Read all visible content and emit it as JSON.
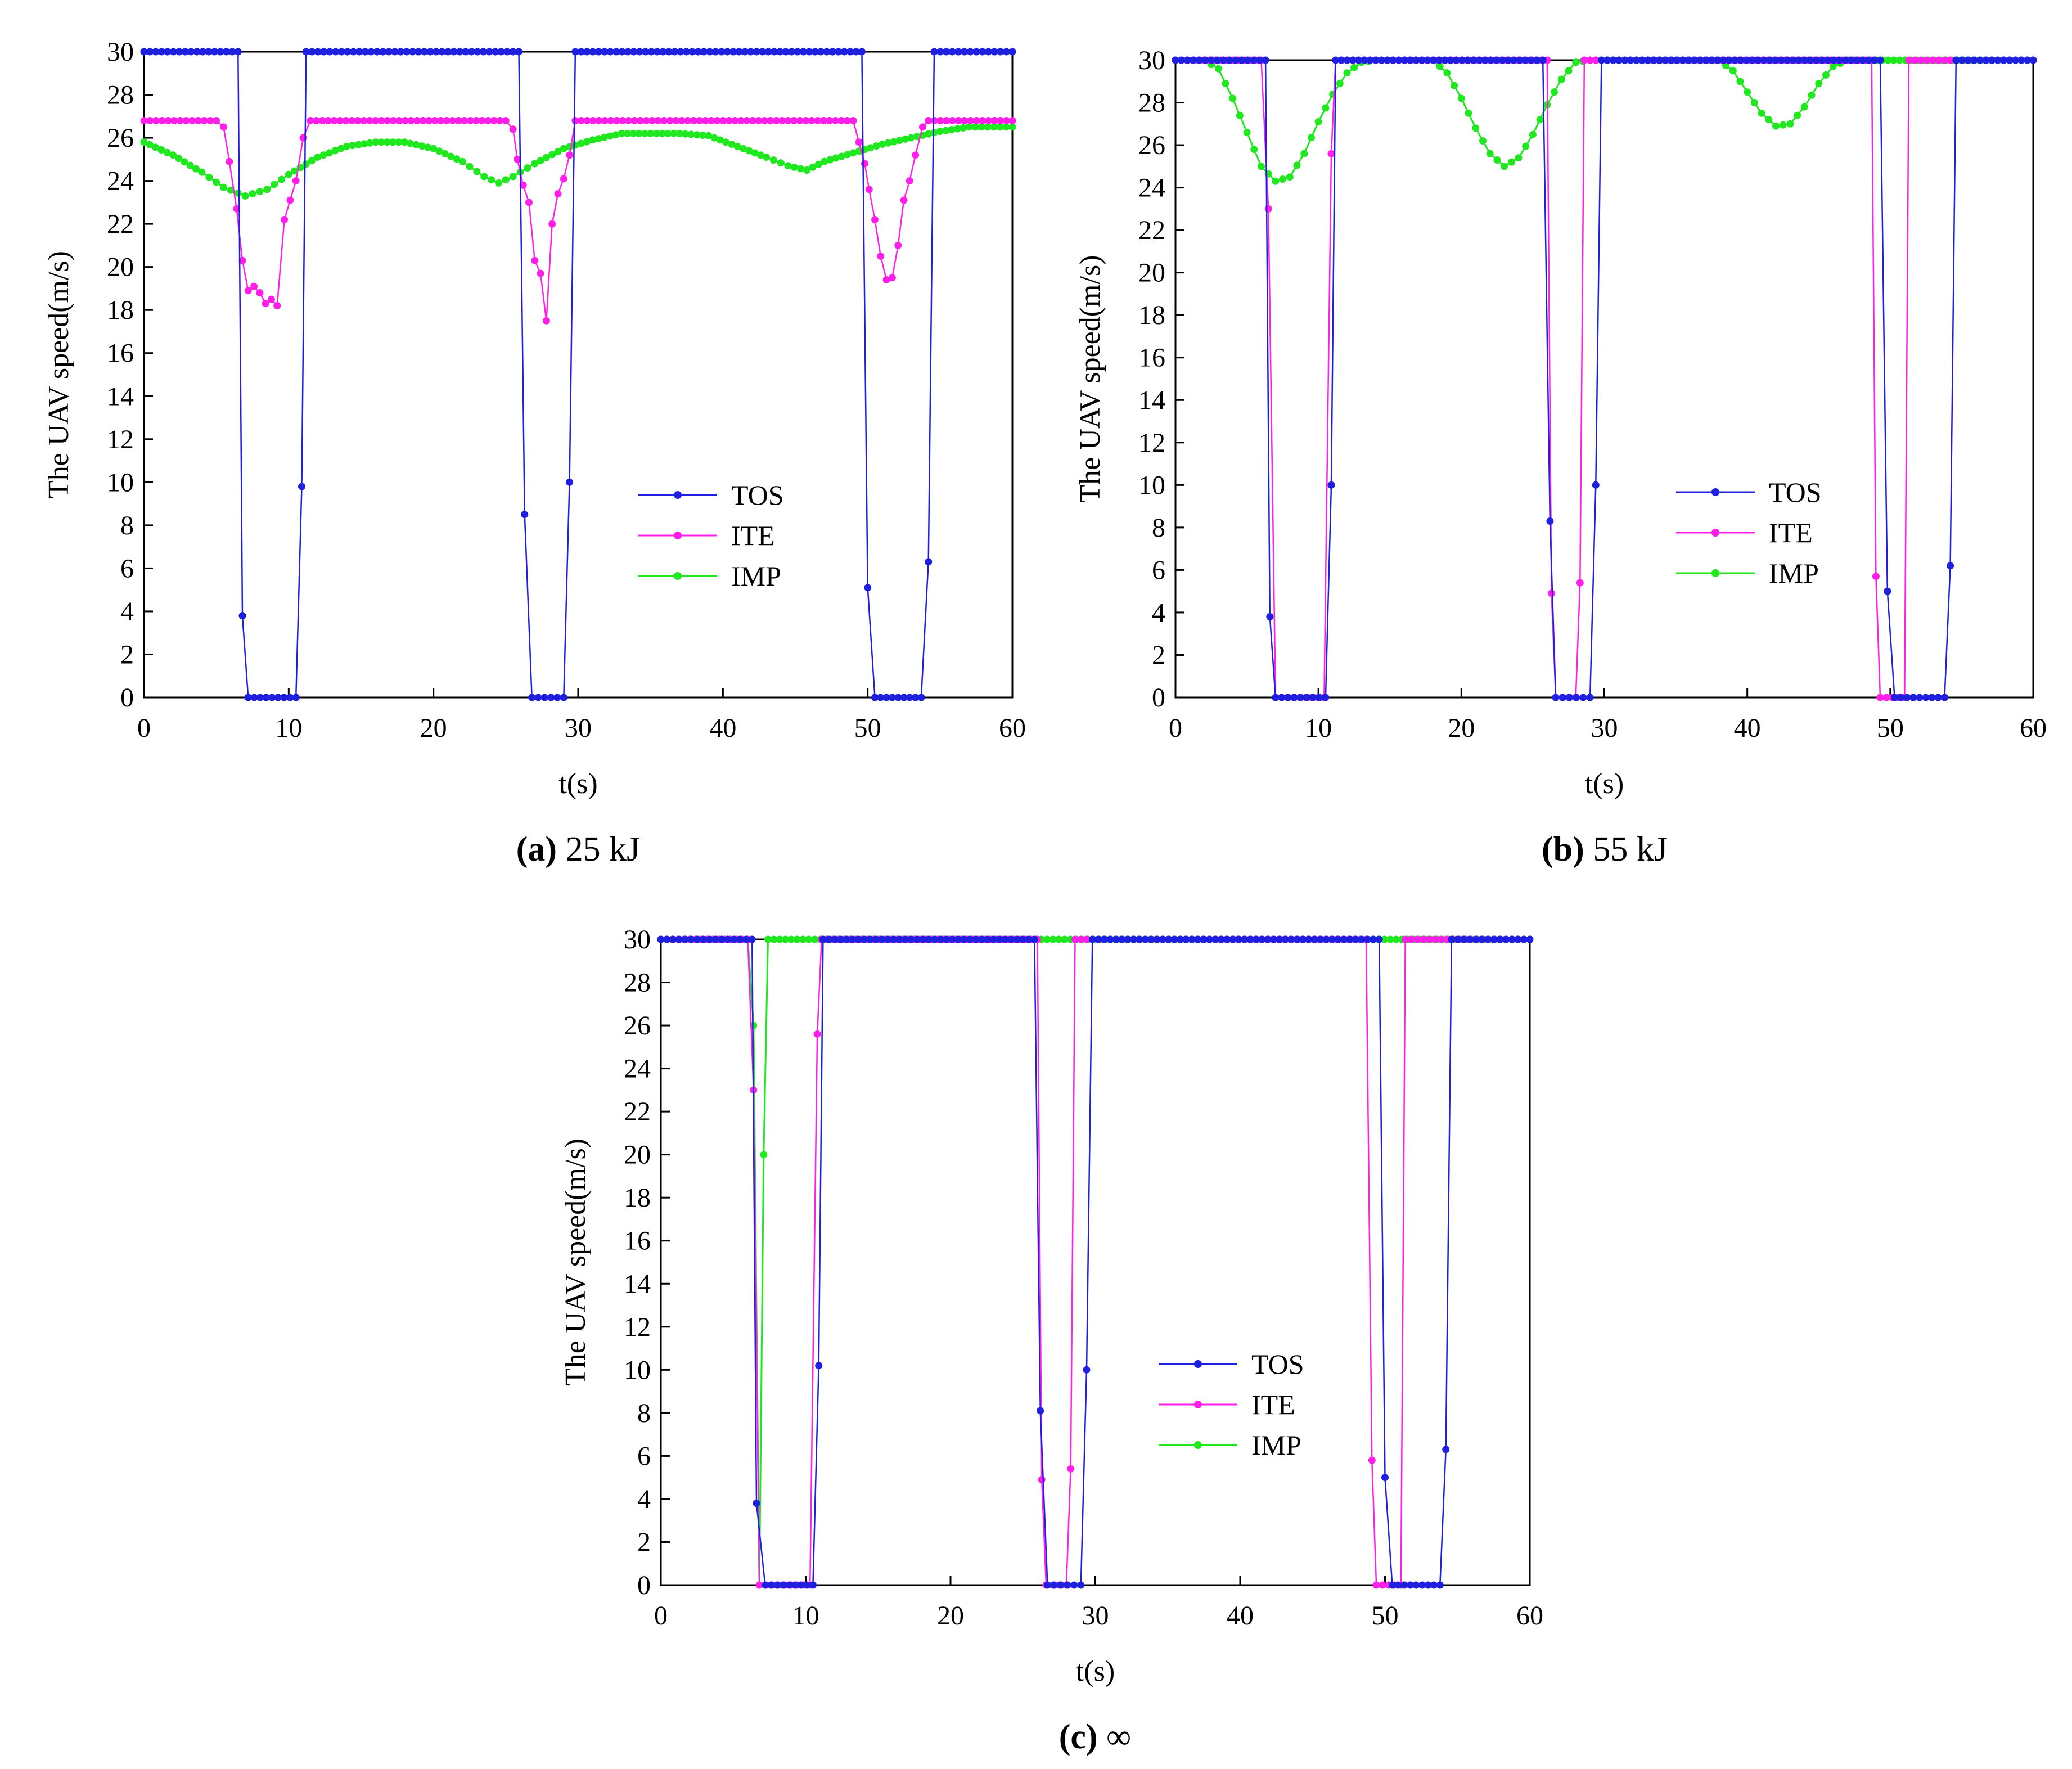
{
  "colors": {
    "TOS": "#1f1fe0",
    "ITE": "#ff1fe8",
    "IMP": "#1fe81f",
    "axis": "#000000"
  },
  "chart_data": [
    {
      "type": "line",
      "panel_letter": "(a)",
      "caption": "25 kJ",
      "xlabel": "t(s)",
      "ylabel": "The UAV speed(m/s)",
      "xlim": [
        0,
        60
      ],
      "ylim": [
        0,
        30
      ],
      "xticks": [
        0,
        10,
        20,
        30,
        40,
        50,
        60
      ],
      "yticks": [
        0,
        2,
        4,
        6,
        8,
        10,
        12,
        14,
        16,
        18,
        20,
        22,
        24,
        26,
        28,
        30
      ],
      "legend": "center-right",
      "legend_entries": [
        "TOS",
        "ITE",
        "IMP"
      ],
      "series": [
        {
          "name": "TOS",
          "points": [
            [
              0,
              30
            ],
            [
              6.5,
              30
            ],
            [
              6.8,
              3.8
            ],
            [
              7.2,
              0
            ],
            [
              10.5,
              0
            ],
            [
              10.9,
              9.8
            ],
            [
              11.2,
              30
            ],
            [
              25.9,
              30
            ],
            [
              26.3,
              8.5
            ],
            [
              26.8,
              0
            ],
            [
              29,
              0
            ],
            [
              29.4,
              10
            ],
            [
              29.8,
              30
            ],
            [
              49.6,
              30
            ],
            [
              50,
              5.1
            ],
            [
              50.5,
              0
            ],
            [
              53.7,
              0
            ],
            [
              54.2,
              6.3
            ],
            [
              54.6,
              30
            ],
            [
              60,
              30
            ]
          ]
        },
        {
          "name": "ITE",
          "points": [
            [
              0,
              26.8
            ],
            [
              5,
              26.8
            ],
            [
              5.5,
              26.5
            ],
            [
              5.9,
              24.9
            ],
            [
              6.4,
              22.7
            ],
            [
              6.8,
              20.3
            ],
            [
              7.2,
              18.9
            ],
            [
              7.6,
              19.1
            ],
            [
              8,
              18.8
            ],
            [
              8.4,
              18.3
            ],
            [
              8.8,
              18.5
            ],
            [
              9.2,
              18.2
            ],
            [
              9.7,
              22.2
            ],
            [
              10.1,
              23.1
            ],
            [
              10.5,
              24
            ],
            [
              11,
              26
            ],
            [
              11.5,
              26.8
            ],
            [
              25,
              26.8
            ],
            [
              25.5,
              26.4
            ],
            [
              25.8,
              25
            ],
            [
              26.2,
              23.8
            ],
            [
              26.6,
              23
            ],
            [
              27,
              20.3
            ],
            [
              27.4,
              19.7
            ],
            [
              27.8,
              17.5
            ],
            [
              28.2,
              22
            ],
            [
              28.6,
              23.4
            ],
            [
              29,
              24.1
            ],
            [
              29.4,
              25.2
            ],
            [
              29.8,
              26.8
            ],
            [
              49,
              26.8
            ],
            [
              49.4,
              25.8
            ],
            [
              49.8,
              24.8
            ],
            [
              50.1,
              23.6
            ],
            [
              50.5,
              22.2
            ],
            [
              50.9,
              20.5
            ],
            [
              51.3,
              19.4
            ],
            [
              51.7,
              19.5
            ],
            [
              52.1,
              21
            ],
            [
              52.5,
              23.1
            ],
            [
              52.9,
              24
            ],
            [
              53.3,
              25.2
            ],
            [
              53.8,
              26.5
            ],
            [
              54.2,
              26.8
            ],
            [
              60,
              26.8
            ]
          ]
        },
        {
          "name": "IMP",
          "points": [
            [
              0,
              25.8
            ],
            [
              2,
              25.2
            ],
            [
              4,
              24.4
            ],
            [
              5.5,
              23.7
            ],
            [
              7,
              23.3
            ],
            [
              8.5,
              23.6
            ],
            [
              10,
              24.3
            ],
            [
              12,
              25.1
            ],
            [
              14,
              25.6
            ],
            [
              16,
              25.8
            ],
            [
              18,
              25.8
            ],
            [
              20,
              25.5
            ],
            [
              22,
              24.9
            ],
            [
              23.5,
              24.2
            ],
            [
              24.5,
              23.9
            ],
            [
              25.5,
              24.2
            ],
            [
              27,
              24.8
            ],
            [
              29,
              25.5
            ],
            [
              31,
              25.9
            ],
            [
              33,
              26.2
            ],
            [
              35,
              26.2
            ],
            [
              37,
              26.2
            ],
            [
              39,
              26.1
            ],
            [
              41,
              25.6
            ],
            [
              43,
              25.1
            ],
            [
              44.5,
              24.7
            ],
            [
              45.8,
              24.5
            ],
            [
              47,
              24.9
            ],
            [
              49,
              25.3
            ],
            [
              51,
              25.7
            ],
            [
              53,
              26
            ],
            [
              55,
              26.3
            ],
            [
              57,
              26.5
            ],
            [
              60,
              26.5
            ]
          ]
        }
      ]
    },
    {
      "type": "line",
      "panel_letter": "(b)",
      "caption": "55 kJ",
      "xlabel": "t(s)",
      "ylabel": "The UAV speed(m/s)",
      "xlim": [
        0,
        60
      ],
      "ylim": [
        0,
        30
      ],
      "xticks": [
        0,
        10,
        20,
        30,
        40,
        50,
        60
      ],
      "yticks": [
        0,
        2,
        4,
        6,
        8,
        10,
        12,
        14,
        16,
        18,
        20,
        22,
        24,
        26,
        28,
        30
      ],
      "legend": "center-right",
      "legend_entries": [
        "TOS",
        "ITE",
        "IMP"
      ],
      "series": [
        {
          "name": "TOS",
          "points": [
            [
              0,
              30
            ],
            [
              6.3,
              30
            ],
            [
              6.6,
              3.8
            ],
            [
              7,
              0
            ],
            [
              10.5,
              0
            ],
            [
              10.9,
              10
            ],
            [
              11.2,
              30
            ],
            [
              25.7,
              30
            ],
            [
              26.2,
              8.3
            ],
            [
              26.6,
              0
            ],
            [
              29,
              0
            ],
            [
              29.4,
              10
            ],
            [
              29.8,
              30
            ],
            [
              49.3,
              30
            ],
            [
              49.8,
              5
            ],
            [
              50.3,
              0
            ],
            [
              53.8,
              0
            ],
            [
              54.2,
              6.2
            ],
            [
              54.6,
              30
            ],
            [
              60,
              30
            ]
          ]
        },
        {
          "name": "ITE",
          "points": [
            [
              0,
              30
            ],
            [
              6,
              30
            ],
            [
              6.5,
              23
            ],
            [
              7,
              0
            ],
            [
              10.4,
              0
            ],
            [
              10.9,
              25.6
            ],
            [
              11.2,
              30
            ],
            [
              26,
              30
            ],
            [
              26.3,
              4.9
            ],
            [
              26.6,
              0
            ],
            [
              28,
              0
            ],
            [
              28.3,
              5.4
            ],
            [
              28.6,
              30
            ],
            [
              48.7,
              30
            ],
            [
              49,
              5.7
            ],
            [
              49.3,
              0
            ],
            [
              51,
              0
            ],
            [
              51.3,
              30
            ],
            [
              60,
              30
            ]
          ]
        },
        {
          "name": "IMP",
          "points": [
            [
              0,
              30
            ],
            [
              2,
              30
            ],
            [
              3,
              29.6
            ],
            [
              4,
              28.2
            ],
            [
              5,
              26.6
            ],
            [
              6,
              25
            ],
            [
              7,
              24.3
            ],
            [
              8,
              24.5
            ],
            [
              9,
              25.6
            ],
            [
              10,
              27.1
            ],
            [
              11,
              28.4
            ],
            [
              12,
              29.4
            ],
            [
              13,
              29.9
            ],
            [
              14,
              30
            ],
            [
              18,
              30
            ],
            [
              19,
              29.4
            ],
            [
              20,
              28.2
            ],
            [
              21,
              26.8
            ],
            [
              22,
              25.6
            ],
            [
              23,
              25
            ],
            [
              24,
              25.4
            ],
            [
              25,
              26.5
            ],
            [
              26,
              27.9
            ],
            [
              27,
              29.1
            ],
            [
              28,
              29.9
            ],
            [
              29,
              30
            ],
            [
              38,
              30
            ],
            [
              39,
              29.5
            ],
            [
              40,
              28.5
            ],
            [
              41,
              27.5
            ],
            [
              42,
              26.9
            ],
            [
              43,
              27
            ],
            [
              44,
              27.8
            ],
            [
              45,
              28.9
            ],
            [
              46,
              29.7
            ],
            [
              47,
              30
            ],
            [
              60,
              30
            ]
          ]
        }
      ]
    },
    {
      "type": "line",
      "panel_letter": "(c)",
      "caption": "∞",
      "xlabel": "t(s)",
      "ylabel": "The UAV speed(m/s)",
      "xlim": [
        0,
        60
      ],
      "ylim": [
        0,
        30
      ],
      "xticks": [
        0,
        10,
        20,
        30,
        40,
        50,
        60
      ],
      "yticks": [
        0,
        2,
        4,
        6,
        8,
        10,
        12,
        14,
        16,
        18,
        20,
        22,
        24,
        26,
        28,
        30
      ],
      "legend": "center-right",
      "legend_entries": [
        "TOS",
        "ITE",
        "IMP"
      ],
      "series": [
        {
          "name": "TOS",
          "points": [
            [
              0,
              30
            ],
            [
              6.3,
              30
            ],
            [
              6.6,
              3.8
            ],
            [
              7.2,
              0
            ],
            [
              10.5,
              0
            ],
            [
              10.9,
              10.2
            ],
            [
              11.2,
              30
            ],
            [
              25.8,
              30
            ],
            [
              26.2,
              8.1
            ],
            [
              26.7,
              0
            ],
            [
              29,
              0
            ],
            [
              29.4,
              10
            ],
            [
              29.8,
              30
            ],
            [
              49.6,
              30
            ],
            [
              50,
              5
            ],
            [
              50.5,
              0
            ],
            [
              53.8,
              0
            ],
            [
              54.2,
              6.3
            ],
            [
              54.6,
              30
            ],
            [
              60,
              30
            ]
          ]
        },
        {
          "name": "ITE",
          "points": [
            [
              0,
              30
            ],
            [
              6,
              30
            ],
            [
              6.4,
              23
            ],
            [
              6.8,
              0
            ],
            [
              10.3,
              0
            ],
            [
              10.8,
              25.6
            ],
            [
              11.1,
              30
            ],
            [
              26,
              30
            ],
            [
              26.3,
              4.9
            ],
            [
              26.6,
              0
            ],
            [
              28,
              0
            ],
            [
              28.3,
              5.4
            ],
            [
              28.6,
              30
            ],
            [
              48.7,
              30
            ],
            [
              49.1,
              5.8
            ],
            [
              49.4,
              0
            ],
            [
              51.1,
              0
            ],
            [
              51.4,
              30
            ],
            [
              60,
              30
            ]
          ]
        },
        {
          "name": "IMP",
          "points": [
            [
              0,
              30
            ],
            [
              6,
              30
            ],
            [
              6.4,
              26
            ],
            [
              6.8,
              0
            ],
            [
              7.1,
              20
            ],
            [
              7.4,
              30
            ],
            [
              60,
              30
            ]
          ]
        }
      ]
    }
  ]
}
